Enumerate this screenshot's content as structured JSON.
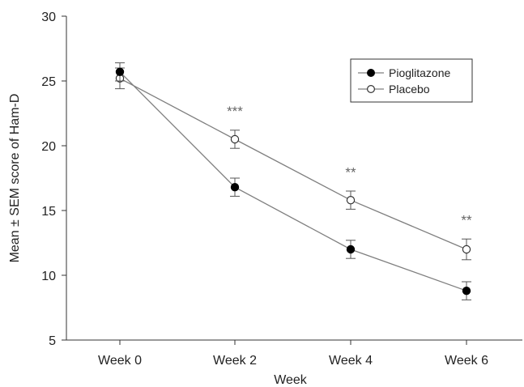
{
  "chart_data": {
    "type": "line",
    "xlabel": "Week",
    "ylabel": "Mean ± SEM score of Ham-D",
    "categories": [
      "Week 0",
      "Week 2",
      "Week 4",
      "Week 6"
    ],
    "ylim": [
      5,
      30
    ],
    "yticks": [
      5,
      10,
      15,
      20,
      25,
      30
    ],
    "grid": false,
    "legend_position": "top-right",
    "series": [
      {
        "name": "Pioglitazone",
        "marker": "filled-circle",
        "color": "#000000",
        "values": [
          25.7,
          16.8,
          12.0,
          8.8
        ],
        "sem": [
          0.7,
          0.7,
          0.7,
          0.7
        ]
      },
      {
        "name": "Placebo",
        "marker": "open-circle",
        "color": "#7f7f7f",
        "values": [
          25.2,
          20.5,
          15.8,
          12.0
        ],
        "sem": [
          0.8,
          0.7,
          0.7,
          0.8
        ]
      }
    ],
    "annotations": [
      {
        "category": "Week 2",
        "text": "***",
        "y": 22.3
      },
      {
        "category": "Week 4",
        "text": "**",
        "y": 17.6
      },
      {
        "category": "Week 6",
        "text": "**",
        "y": 13.9
      }
    ]
  }
}
